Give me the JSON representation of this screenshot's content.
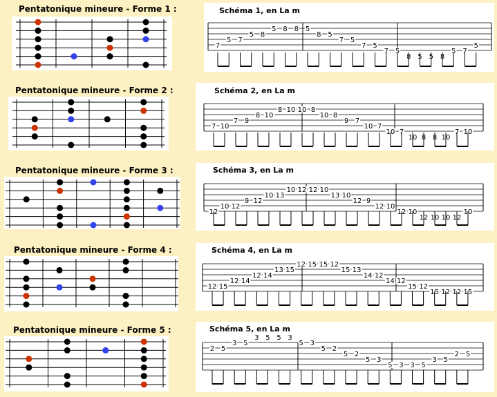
{
  "sections": [
    {
      "title": "Pentatonique mineure - Forme 1 :",
      "tab_title": "Schéma 1, en La m",
      "fretboard": {
        "strings": 6,
        "frets": 4,
        "dots": [
          {
            "string": 1,
            "fret": 0.5,
            "type": "root"
          },
          {
            "string": 2,
            "fret": 0.5,
            "type": "note"
          },
          {
            "string": 3,
            "fret": 0.5,
            "type": "note"
          },
          {
            "string": 4,
            "fret": 0.5,
            "type": "note"
          },
          {
            "string": 5,
            "fret": 0.5,
            "type": "note"
          },
          {
            "string": 6,
            "fret": 0.5,
            "type": "root"
          },
          {
            "string": 5,
            "fret": 1.5,
            "type": "blue"
          },
          {
            "string": 3,
            "fret": 2.5,
            "type": "note"
          },
          {
            "string": 4,
            "fret": 2.5,
            "type": "root"
          },
          {
            "string": 5,
            "fret": 2.5,
            "type": "note"
          },
          {
            "string": 1,
            "fret": 3.5,
            "type": "note"
          },
          {
            "string": 2,
            "fret": 3.5,
            "type": "note"
          },
          {
            "string": 3,
            "fret": 3.5,
            "type": "blue"
          },
          {
            "string": 6,
            "fret": 3.5,
            "type": "note"
          }
        ]
      },
      "tab": {
        "notes": [
          {
            "t": 0,
            "s": 5,
            "v": "7"
          },
          {
            "t": 1,
            "s": 4,
            "v": "5"
          },
          {
            "t": 2,
            "s": 4,
            "v": "7"
          },
          {
            "t": 3,
            "s": 3,
            "v": "5"
          },
          {
            "t": 4,
            "s": 3,
            "v": "8"
          },
          {
            "t": 5,
            "s": 2,
            "v": "5"
          },
          {
            "t": 6,
            "s": 2,
            "v": "8"
          },
          {
            "t": 7,
            "s": 2,
            "v": "8"
          },
          {
            "t": 8,
            "s": 2,
            "v": "5"
          },
          {
            "t": 9,
            "s": 3,
            "v": "8"
          },
          {
            "t": 10,
            "s": 3,
            "v": "5"
          },
          {
            "t": 11,
            "s": 4,
            "v": "7"
          },
          {
            "t": 12,
            "s": 4,
            "v": "5"
          },
          {
            "t": 13,
            "s": 5,
            "v": "7"
          },
          {
            "t": 14,
            "s": 5,
            "v": "5"
          },
          {
            "t": 15,
            "s": 6,
            "v": "7"
          },
          {
            "t": 16,
            "s": 6,
            "v": "5"
          },
          {
            "t": 17,
            "s": 7,
            "v": "8"
          },
          {
            "t": 18,
            "s": 7,
            "v": "5"
          },
          {
            "t": 19,
            "s": 7,
            "v": "5"
          },
          {
            "t": 20,
            "s": 7,
            "v": "8"
          },
          {
            "t": 21,
            "s": 6,
            "v": "5"
          },
          {
            "t": 22,
            "s": 6,
            "v": "7"
          },
          {
            "t": 23,
            "s": 5,
            "v": "5"
          }
        ]
      }
    },
    {
      "title": "Pentatonique mineure - Forme 2 :",
      "tab_title": "Schéma 2, en La m",
      "fretboard": {
        "strings": 6,
        "frets": 4,
        "dots": [
          {
            "string": 3,
            "fret": 0.5,
            "type": "note"
          },
          {
            "string": 4,
            "fret": 0.5,
            "type": "root"
          },
          {
            "string": 5,
            "fret": 0.5,
            "type": "note"
          },
          {
            "string": 1,
            "fret": 1.5,
            "type": "note"
          },
          {
            "string": 2,
            "fret": 1.5,
            "type": "note"
          },
          {
            "string": 3,
            "fret": 1.5,
            "type": "blue"
          },
          {
            "string": 6,
            "fret": 1.5,
            "type": "note"
          },
          {
            "string": 3,
            "fret": 2.5,
            "type": "note"
          },
          {
            "string": 1,
            "fret": 3.5,
            "type": "note"
          },
          {
            "string": 2,
            "fret": 3.5,
            "type": "root"
          },
          {
            "string": 4,
            "fret": 3.5,
            "type": "note"
          },
          {
            "string": 5,
            "fret": 3.5,
            "type": "note"
          },
          {
            "string": 6,
            "fret": 3.5,
            "type": "note"
          }
        ]
      },
      "tab": {
        "notes": [
          {
            "t": 0,
            "s": 5,
            "v": "7"
          },
          {
            "t": 1,
            "s": 5,
            "v": "10"
          },
          {
            "t": 2,
            "s": 4,
            "v": "7"
          },
          {
            "t": 3,
            "s": 4,
            "v": "9"
          },
          {
            "t": 4,
            "s": 3,
            "v": "8"
          },
          {
            "t": 5,
            "s": 3,
            "v": "10"
          },
          {
            "t": 6,
            "s": 2,
            "v": "8"
          },
          {
            "t": 7,
            "s": 2,
            "v": "10"
          },
          {
            "t": 8,
            "s": 2,
            "v": "10"
          },
          {
            "t": 9,
            "s": 2,
            "v": "8"
          },
          {
            "t": 10,
            "s": 3,
            "v": "10"
          },
          {
            "t": 11,
            "s": 3,
            "v": "8"
          },
          {
            "t": 12,
            "s": 4,
            "v": "9"
          },
          {
            "t": 13,
            "s": 4,
            "v": "7"
          },
          {
            "t": 14,
            "s": 5,
            "v": "10"
          },
          {
            "t": 15,
            "s": 5,
            "v": "7"
          },
          {
            "t": 16,
            "s": 6,
            "v": "10"
          },
          {
            "t": 17,
            "s": 6,
            "v": "7"
          },
          {
            "t": 18,
            "s": 7,
            "v": "10"
          },
          {
            "t": 19,
            "s": 7,
            "v": "8"
          },
          {
            "t": 20,
            "s": 7,
            "v": "8"
          },
          {
            "t": 21,
            "s": 7,
            "v": "10"
          },
          {
            "t": 22,
            "s": 6,
            "v": "7"
          },
          {
            "t": 23,
            "s": 6,
            "v": "10"
          }
        ]
      }
    },
    {
      "title": "Pentatonique mineure - Forme 3 :",
      "tab_title": "Schéma 3, en La m",
      "fretboard": {
        "strings": 6,
        "frets": 5,
        "dots": [
          {
            "string": 3,
            "fret": 0.5,
            "type": "note"
          },
          {
            "string": 1,
            "fret": 1.5,
            "type": "note"
          },
          {
            "string": 2,
            "fret": 1.5,
            "type": "root"
          },
          {
            "string": 4,
            "fret": 1.5,
            "type": "note"
          },
          {
            "string": 5,
            "fret": 1.5,
            "type": "note"
          },
          {
            "string": 6,
            "fret": 1.5,
            "type": "note"
          },
          {
            "string": 1,
            "fret": 2.5,
            "type": "blue"
          },
          {
            "string": 6,
            "fret": 2.5,
            "type": "blue"
          },
          {
            "string": 1,
            "fret": 3.5,
            "type": "note"
          },
          {
            "string": 2,
            "fret": 3.5,
            "type": "note"
          },
          {
            "string": 3,
            "fret": 3.5,
            "type": "note"
          },
          {
            "string": 4,
            "fret": 3.5,
            "type": "note"
          },
          {
            "string": 5,
            "fret": 3.5,
            "type": "root"
          },
          {
            "string": 6,
            "fret": 3.5,
            "type": "note"
          },
          {
            "string": 2,
            "fret": 4.5,
            "type": "note"
          },
          {
            "string": 4,
            "fret": 4.5,
            "type": "blue"
          }
        ]
      },
      "tab": {
        "notes": [
          {
            "t": 0,
            "s": 6,
            "v": "12"
          },
          {
            "t": 1,
            "s": 5,
            "v": "10"
          },
          {
            "t": 2,
            "s": 5,
            "v": "12"
          },
          {
            "t": 3,
            "s": 4,
            "v": "9"
          },
          {
            "t": 4,
            "s": 4,
            "v": "12"
          },
          {
            "t": 5,
            "s": 3,
            "v": "10"
          },
          {
            "t": 6,
            "s": 3,
            "v": "13"
          },
          {
            "t": 7,
            "s": 2,
            "v": "10"
          },
          {
            "t": 8,
            "s": 2,
            "v": "12"
          },
          {
            "t": 9,
            "s": 2,
            "v": "12"
          },
          {
            "t": 10,
            "s": 2,
            "v": "10"
          },
          {
            "t": 11,
            "s": 3,
            "v": "13"
          },
          {
            "t": 12,
            "s": 3,
            "v": "10"
          },
          {
            "t": 13,
            "s": 4,
            "v": "12"
          },
          {
            "t": 14,
            "s": 4,
            "v": "9"
          },
          {
            "t": 15,
            "s": 5,
            "v": "12"
          },
          {
            "t": 16,
            "s": 5,
            "v": "10"
          },
          {
            "t": 17,
            "s": 6,
            "v": "12"
          },
          {
            "t": 18,
            "s": 6,
            "v": "10"
          },
          {
            "t": 19,
            "s": 7,
            "v": "12"
          },
          {
            "t": 20,
            "s": 7,
            "v": "10"
          },
          {
            "t": 21,
            "s": 7,
            "v": "10"
          },
          {
            "t": 22,
            "s": 7,
            "v": "12"
          },
          {
            "t": 23,
            "s": 6,
            "v": "10"
          }
        ]
      }
    },
    {
      "title": "Pentatonique mineure - Forme 4 :",
      "tab_title": "Schéma 4, en La m",
      "fretboard": {
        "strings": 6,
        "frets": 5,
        "dots": [
          {
            "string": 1,
            "fret": 0.5,
            "type": "note"
          },
          {
            "string": 3,
            "fret": 0.5,
            "type": "note"
          },
          {
            "string": 4,
            "fret": 0.5,
            "type": "note"
          },
          {
            "string": 5,
            "fret": 0.5,
            "type": "root"
          },
          {
            "string": 6,
            "fret": 0.5,
            "type": "note"
          },
          {
            "string": 2,
            "fret": 1.5,
            "type": "note"
          },
          {
            "string": 4,
            "fret": 1.5,
            "type": "blue"
          },
          {
            "string": 3,
            "fret": 2.5,
            "type": "root"
          },
          {
            "string": 4,
            "fret": 2.5,
            "type": "note"
          },
          {
            "string": 1,
            "fret": 3.5,
            "type": "note"
          },
          {
            "string": 2,
            "fret": 3.5,
            "type": "note"
          },
          {
            "string": 5,
            "fret": 3.5,
            "type": "note"
          },
          {
            "string": 6,
            "fret": 3.5,
            "type": "note"
          }
        ]
      },
      "tab": {
        "notes": [
          {
            "t": 0,
            "s": 5,
            "v": "12"
          },
          {
            "t": 1,
            "s": 5,
            "v": "15"
          },
          {
            "t": 2,
            "s": 4,
            "v": "12"
          },
          {
            "t": 3,
            "s": 4,
            "v": "14"
          },
          {
            "t": 4,
            "s": 3,
            "v": "12"
          },
          {
            "t": 5,
            "s": 3,
            "v": "14"
          },
          {
            "t": 6,
            "s": 2,
            "v": "13"
          },
          {
            "t": 7,
            "s": 2,
            "v": "15"
          },
          {
            "t": 8,
            "s": 1,
            "v": "12"
          },
          {
            "t": 9,
            "s": 1,
            "v": "15"
          },
          {
            "t": 10,
            "s": 1,
            "v": "15"
          },
          {
            "t": 11,
            "s": 1,
            "v": "12"
          },
          {
            "t": 12,
            "s": 2,
            "v": "15"
          },
          {
            "t": 13,
            "s": 2,
            "v": "13"
          },
          {
            "t": 14,
            "s": 3,
            "v": "14"
          },
          {
            "t": 15,
            "s": 3,
            "v": "12"
          },
          {
            "t": 16,
            "s": 4,
            "v": "14"
          },
          {
            "t": 17,
            "s": 4,
            "v": "12"
          },
          {
            "t": 18,
            "s": 5,
            "v": "15"
          },
          {
            "t": 19,
            "s": 5,
            "v": "12"
          },
          {
            "t": 20,
            "s": 6,
            "v": "15"
          },
          {
            "t": 21,
            "s": 6,
            "v": "12"
          },
          {
            "t": 22,
            "s": 6,
            "v": "12"
          },
          {
            "t": 23,
            "s": 6,
            "v": "15"
          }
        ]
      }
    },
    {
      "title": "Pentatonique mineure - Forme 5 :",
      "tab_title": "Schéma 5, en La m",
      "fretboard": {
        "strings": 6,
        "frets": 4,
        "dots": [
          {
            "string": 3,
            "fret": 0.5,
            "type": "root"
          },
          {
            "string": 4,
            "fret": 0.5,
            "type": "note"
          },
          {
            "string": 1,
            "fret": 1.5,
            "type": "note"
          },
          {
            "string": 2,
            "fret": 1.5,
            "type": "note"
          },
          {
            "string": 5,
            "fret": 1.5,
            "type": "note"
          },
          {
            "string": 6,
            "fret": 1.5,
            "type": "note"
          },
          {
            "string": 2,
            "fret": 2.5,
            "type": "blue"
          },
          {
            "string": 1,
            "fret": 3.5,
            "type": "root"
          },
          {
            "string": 2,
            "fret": 3.5,
            "type": "note"
          },
          {
            "string": 3,
            "fret": 3.5,
            "type": "note"
          },
          {
            "string": 4,
            "fret": 3.5,
            "type": "note"
          },
          {
            "string": 5,
            "fret": 3.5,
            "type": "note"
          },
          {
            "string": 6,
            "fret": 3.5,
            "type": "root"
          }
        ]
      },
      "tab": {
        "notes": [
          {
            "t": 0,
            "s": 2,
            "v": "2"
          },
          {
            "t": 1,
            "s": 2,
            "v": "5"
          },
          {
            "t": 2,
            "s": 1,
            "v": "3"
          },
          {
            "t": 3,
            "s": 1,
            "v": "5"
          },
          {
            "t": 4,
            "s": 0,
            "v": "3"
          },
          {
            "t": 5,
            "s": 0,
            "v": "5"
          },
          {
            "t": 6,
            "s": 0,
            "v": "5"
          },
          {
            "t": 7,
            "s": 0,
            "v": "3"
          },
          {
            "t": 8,
            "s": 1,
            "v": "5"
          },
          {
            "t": 9,
            "s": 1,
            "v": "3"
          },
          {
            "t": 10,
            "s": 2,
            "v": "5"
          },
          {
            "t": 11,
            "s": 2,
            "v": "2"
          },
          {
            "t": 12,
            "s": 3,
            "v": "5"
          },
          {
            "t": 13,
            "s": 3,
            "v": "2"
          },
          {
            "t": 14,
            "s": 4,
            "v": "5"
          },
          {
            "t": 15,
            "s": 4,
            "v": "3"
          },
          {
            "t": 16,
            "s": 5,
            "v": "5"
          },
          {
            "t": 17,
            "s": 5,
            "v": "3"
          },
          {
            "t": 18,
            "s": 5,
            "v": "3"
          },
          {
            "t": 19,
            "s": 5,
            "v": "5"
          },
          {
            "t": 20,
            "s": 4,
            "v": "3"
          },
          {
            "t": 21,
            "s": 4,
            "v": "5"
          },
          {
            "t": 22,
            "s": 3,
            "v": "2"
          },
          {
            "t": 23,
            "s": 3,
            "v": "5"
          }
        ]
      }
    }
  ],
  "colors": {
    "background": "#fdf0c2",
    "root": "#cc3300",
    "blue": "#3344ee",
    "note": "#000000"
  }
}
